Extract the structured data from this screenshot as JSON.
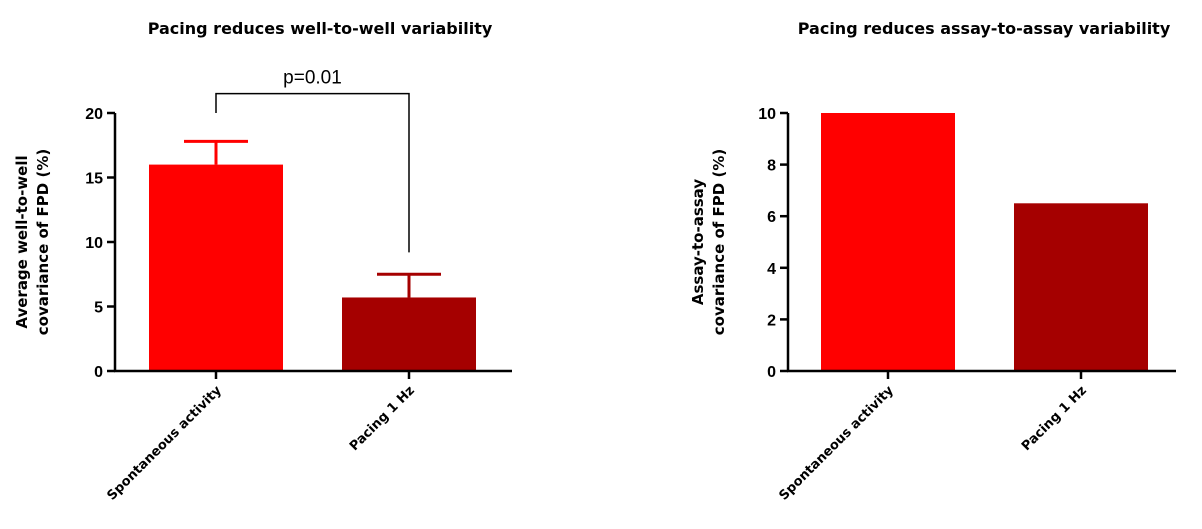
{
  "chart_data": [
    {
      "type": "bar",
      "title": "Pacing reduces well-to-well variability",
      "xlabel": "",
      "ylabel": [
        "Average well-to-well",
        "covariance of FPD (%)"
      ],
      "categories": [
        "Spontaneous activity",
        "Pacing 1 Hz"
      ],
      "values": [
        16,
        5.7
      ],
      "error_upper": [
        17.8,
        7.5
      ],
      "colors": [
        "#ff0000",
        "#a50000"
      ],
      "ylim": [
        0,
        20
      ],
      "yticks": [
        0,
        5,
        10,
        15,
        20
      ],
      "grid": false,
      "annotation": {
        "text": "p=0.01",
        "bracket_top": 21.5,
        "left_drop_to": 20.0,
        "right_drop_to": 9.2
      }
    },
    {
      "type": "bar",
      "title": "Pacing reduces assay-to-assay variability",
      "xlabel": "",
      "ylabel": [
        "Assay-to-assay",
        "covariance of FPD (%)"
      ],
      "categories": [
        "Spontaneous activity",
        "Pacing 1 Hz"
      ],
      "values": [
        10,
        6.5
      ],
      "colors": [
        "#ff0000",
        "#a50000"
      ],
      "ylim": [
        0,
        10
      ],
      "yticks": [
        0,
        2,
        4,
        6,
        8,
        10
      ],
      "grid": false
    }
  ]
}
